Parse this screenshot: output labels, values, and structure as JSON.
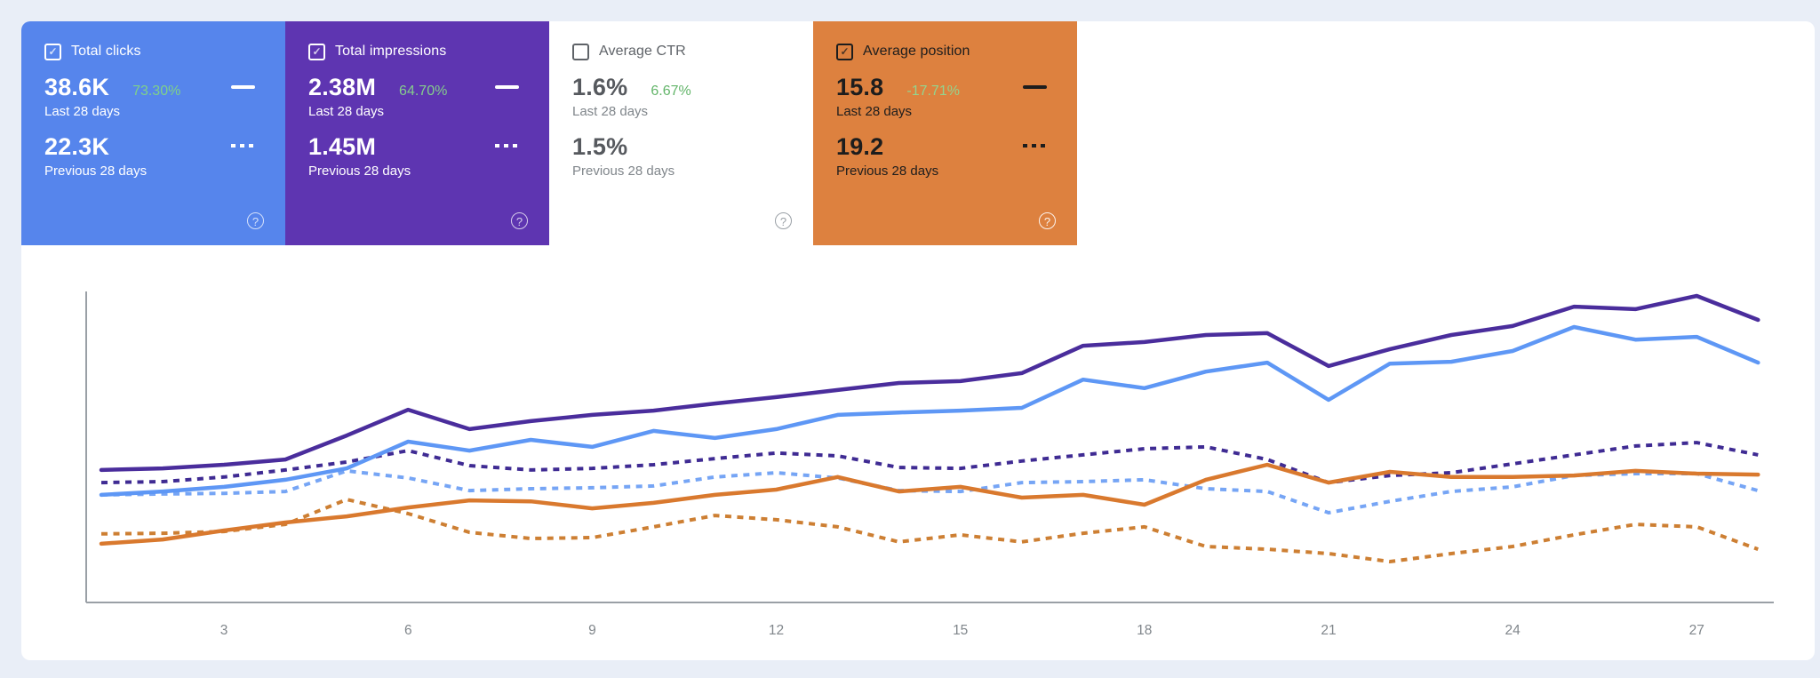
{
  "page": {
    "background_color": "#e9eef7",
    "panel_background": "#ffffff",
    "app": "Search performance dashboard"
  },
  "cards": [
    {
      "title": "Total clicks",
      "selected": true,
      "checkbox_glyph": "✓",
      "background": "#5685ec",
      "change_color": "#7fd189",
      "primary_value": "38.6K",
      "change": "73.30%",
      "primary_label": "Last 28 days",
      "secondary_value": "22.3K",
      "secondary_label": "Previous 28 days",
      "help_glyph": "?"
    },
    {
      "title": "Total impressions",
      "selected": true,
      "checkbox_glyph": "✓",
      "background": "#5e35b1",
      "change_color": "#85cd8c",
      "primary_value": "2.38M",
      "change": "64.70%",
      "primary_label": "Last 28 days",
      "secondary_value": "1.45M",
      "secondary_label": "Previous 28 days",
      "help_glyph": "?"
    },
    {
      "title": "Average CTR",
      "selected": false,
      "checkbox_glyph": "",
      "background": "#ffffff",
      "change_color": "#63b56a",
      "primary_value": "1.6%",
      "change": "6.67%",
      "primary_label": "Last 28 days",
      "secondary_value": "1.5%",
      "secondary_label": "Previous 28 days",
      "help_glyph": "?"
    },
    {
      "title": "Average position",
      "selected": true,
      "checkbox_glyph": "✓",
      "background": "#dd813f",
      "change_color": "#93d48f",
      "primary_value": "15.8",
      "change": "-17.71%",
      "primary_label": "Last 28 days",
      "secondary_value": "19.2",
      "secondary_label": "Previous 28 days",
      "help_glyph": "?"
    }
  ],
  "chart_data": {
    "type": "line",
    "title": "",
    "xlabel": "",
    "ylabel": "",
    "x_unit": "day of 28-day period",
    "x": [
      1,
      2,
      3,
      4,
      5,
      6,
      7,
      8,
      9,
      10,
      11,
      12,
      13,
      14,
      15,
      16,
      17,
      18,
      19,
      20,
      21,
      22,
      23,
      24,
      25,
      26,
      27,
      28
    ],
    "x_ticks": [
      "3",
      "6",
      "9",
      "12",
      "15",
      "18",
      "21",
      "24",
      "27"
    ],
    "y_axis_labels_visible": false,
    "value_scale": "relative plot height 0-100 (chart shows no y-axis tick labels; each metric normalized)",
    "grid": false,
    "legend": "metric cards above act as legend (solid = last 28 days, dashed = previous 28 days)",
    "axis_color": "#9aa0a6",
    "tick_label_color": "#80868b",
    "series": [
      {
        "name": "Total impressions — Previous 28 days",
        "style": "dashed",
        "color": "#3f2b93",
        "values": [
          39,
          39.3,
          40.8,
          43.1,
          45.7,
          49.4,
          44.5,
          43.1,
          43.6,
          44.8,
          46.8,
          48.6,
          47.7,
          43.9,
          43.6,
          46,
          48,
          50,
          50.6,
          46.5,
          39,
          41.3,
          42.2,
          45.1,
          48,
          50.9,
          52,
          48
        ]
      },
      {
        "name": "Total clicks — Previous 28 days",
        "style": "dashed",
        "color": "#76a5f5",
        "values": [
          35,
          35.3,
          35.5,
          36.1,
          42.8,
          40.5,
          36.4,
          37,
          37.3,
          37.9,
          40.8,
          42.2,
          40.5,
          36.4,
          36.1,
          39,
          39.3,
          39.9,
          37,
          36.1,
          29.2,
          32.9,
          36.1,
          37.6,
          41.3,
          41.9,
          41.9,
          36.4
        ]
      },
      {
        "name": "Average position — Previous 28 days",
        "style": "dashed",
        "color": "#cd7f33",
        "values": [
          22.3,
          22.5,
          23.1,
          25.4,
          33.5,
          28.9,
          22.8,
          20.8,
          21.1,
          24.6,
          28.3,
          26.9,
          24.6,
          19.7,
          22,
          19.7,
          22.5,
          24.6,
          18.2,
          17.3,
          15.9,
          13.3,
          15.9,
          18.2,
          22,
          25.4,
          24.6,
          17.3
        ]
      },
      {
        "name": "Total impressions — Last 28 days",
        "style": "solid",
        "color": "#4a2d9c",
        "values": [
          43.1,
          43.6,
          44.8,
          46.5,
          54.3,
          62.7,
          56.4,
          59,
          61,
          62.4,
          64.7,
          66.8,
          69.1,
          71.4,
          72,
          74.6,
          83.5,
          84.7,
          87,
          87.6,
          76.9,
          82.4,
          87,
          89.9,
          96.2,
          95.4,
          99.7,
          91.9
        ]
      },
      {
        "name": "Total clicks — Last 28 days",
        "style": "solid",
        "color": "#5e97f5",
        "values": [
          35,
          36.1,
          37.6,
          39.9,
          43.6,
          52.3,
          49.4,
          52.9,
          50.6,
          55.8,
          53.5,
          56.4,
          61,
          61.8,
          62.4,
          63.3,
          72.5,
          69.7,
          75.1,
          78,
          65.9,
          77.7,
          78.3,
          81.8,
          89.6,
          85.5,
          86.4,
          78
        ]
      },
      {
        "name": "Average position — Last 28 days",
        "style": "solid",
        "color": "#d9792e",
        "values": [
          19.1,
          20.5,
          23.4,
          26,
          28,
          30.9,
          33.2,
          32.9,
          30.6,
          32.4,
          35,
          36.7,
          40.8,
          36.1,
          37.6,
          34.1,
          35,
          31.8,
          39.9,
          44.8,
          39,
          42.5,
          40.8,
          40.8,
          41.3,
          42.8,
          41.9,
          41.6
        ]
      }
    ]
  }
}
